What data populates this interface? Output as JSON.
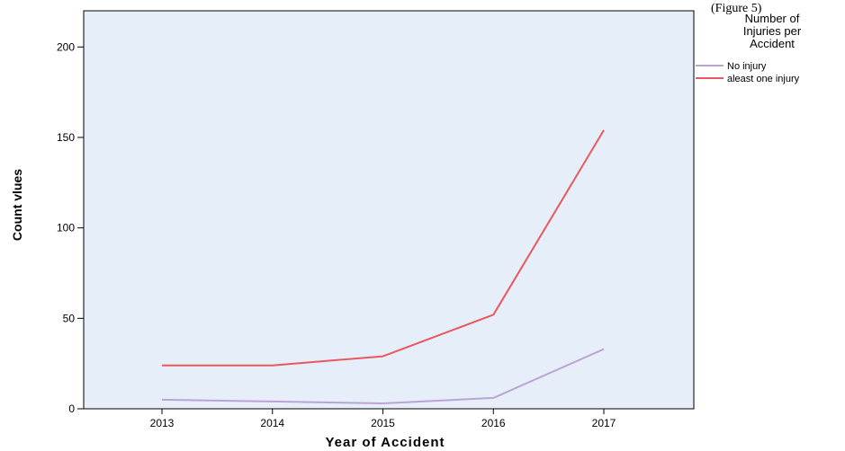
{
  "caption_fragment": "(Figure 5)",
  "chart_data": {
    "type": "line",
    "title": "",
    "xlabel": "Year of Accident",
    "ylabel": "Count vlues",
    "categories": [
      "2013",
      "2014",
      "2015",
      "2016",
      "2017"
    ],
    "ylim": [
      0,
      220
    ],
    "yticks": [
      0,
      50,
      100,
      150,
      200
    ],
    "grid": false,
    "background_color": "#e6eefa",
    "legend": {
      "title": [
        "Number of",
        "Injuries per",
        "Accident"
      ],
      "position": "right"
    },
    "series": [
      {
        "name": "No injury",
        "color": "#b9a4d4",
        "values": [
          5,
          4,
          3,
          6,
          33
        ]
      },
      {
        "name": "aleast one injury",
        "color": "#e8585e",
        "values": [
          24,
          24,
          29,
          52,
          154
        ]
      }
    ]
  }
}
